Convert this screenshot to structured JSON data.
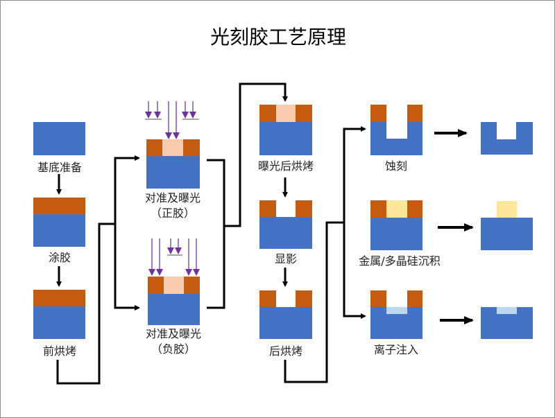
{
  "title": "光刻胶工艺原理",
  "colors": {
    "substrate": "#4472c4",
    "photoresist": "#c55a11",
    "exposed_resist": "#f8cbad",
    "deposited_material": "#ffe699",
    "implanted_region": "#bdd7ee",
    "uv_light": "#7030a0",
    "mask": "#a6a6a6"
  },
  "steps": {
    "substrate_prep": "基底准备",
    "coating": "涂胶",
    "prebake": "前烘烤",
    "exposure_positive": {
      "line1": "对准及曝光",
      "line2": "（正胶）"
    },
    "exposure_negative": {
      "line1": "对准及曝光",
      "line2": "（负胶）"
    },
    "post_exposure_bake": "曝光后烘烤",
    "develop": "显影",
    "hard_bake": "后烘烤",
    "etch": "蚀刻",
    "deposition": "金属/多晶硅沉积",
    "ion_implant": "离子注入"
  }
}
